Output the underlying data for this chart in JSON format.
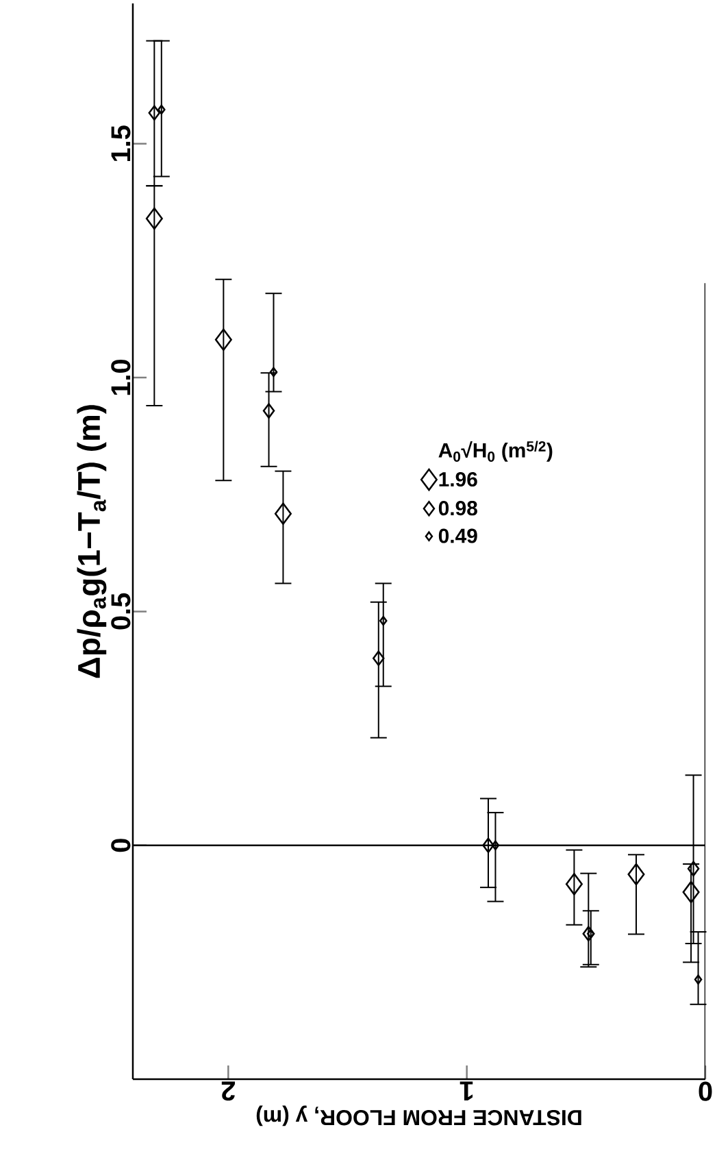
{
  "chart_data": {
    "type": "scatter",
    "xlabel": "DISTANCE FROM FLOOR, y (m)",
    "ylabel": "Δp/ρ$_{a}$g(1−T$_{a}$/T) (m)",
    "legend_title": "A$_{0}$√H$_{0}$ (m$^{5/2}$)",
    "legend": "right",
    "marker": "diamond",
    "xlim": [
      2.4,
      0
    ],
    "xticks": [
      2,
      1,
      0
    ],
    "ylim": [
      -0.5,
      1.8
    ],
    "yticks": [
      0,
      0.5,
      {
        "value": 1,
        "label": "1.0"
      },
      1.5
    ],
    "ref_lines": [
      {
        "axis": "y",
        "value": 0
      }
    ],
    "series": [
      {
        "name": "1.96",
        "color": "#000000",
        "x": [
          2.31,
          2.02,
          1.77,
          0.55,
          0.29,
          0.06
        ],
        "values": [
          1.34,
          1.081,
          0.709,
          -0.083,
          -0.062,
          -0.1
        ],
        "errors": [
          [
            0.94,
            1.41
          ],
          [
            0.78,
            1.21
          ],
          [
            0.56,
            0.8
          ],
          [
            -0.17,
            -0.01
          ],
          [
            -0.19,
            -0.02
          ],
          [
            -0.25,
            -0.04
          ]
        ]
      },
      {
        "name": "0.98",
        "color": "#000000",
        "x": [
          2.31,
          1.83,
          1.37,
          0.91,
          0.49,
          0.05
        ],
        "values": [
          1.566,
          0.929,
          0.4,
          0.0,
          -0.189,
          -0.05
        ],
        "errors": [
          [
            1.41,
            1.72
          ],
          [
            0.81,
            1.01
          ],
          [
            0.23,
            0.52
          ],
          [
            -0.09,
            0.1
          ],
          [
            -0.26,
            -0.06
          ],
          [
            -0.21,
            0.15
          ]
        ]
      },
      {
        "name": "0.49",
        "color": "#000000",
        "x": [
          2.28,
          1.81,
          1.35,
          0.88,
          0.48,
          0.03
        ],
        "values": [
          1.573,
          1.012,
          0.48,
          0.0,
          -0.189,
          -0.287
        ],
        "errors": [
          [
            1.43,
            1.72
          ],
          [
            0.97,
            1.18
          ],
          [
            0.34,
            0.56
          ],
          [
            -0.12,
            0.07
          ],
          [
            -0.255,
            -0.14
          ],
          [
            -0.34,
            -0.185
          ]
        ]
      }
    ]
  }
}
